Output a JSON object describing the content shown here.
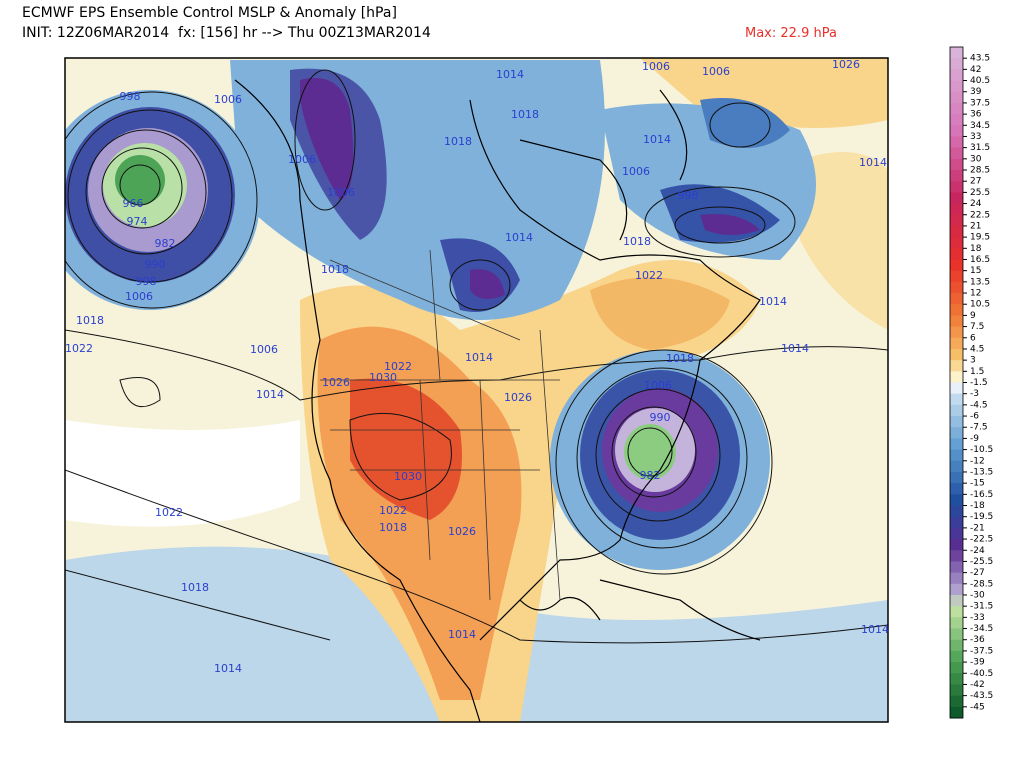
{
  "header": {
    "title": "ECMWF EPS Ensemble Control MSLP & Anomaly [hPa]",
    "init": "INIT: 12Z06MAR2014  fx: [156] hr --> Thu 00Z13MAR2014",
    "max": "Max: 22.9 hPa"
  },
  "colorbar": {
    "labels": [
      "43.5",
      "42",
      "40.5",
      "39",
      "37.5",
      "36",
      "34.5",
      "33",
      "31.5",
      "30",
      "28.5",
      "27",
      "25.5",
      "24",
      "22.5",
      "21",
      "19.5",
      "18",
      "16.5",
      "15",
      "13.5",
      "12",
      "10.5",
      "9",
      "7.5",
      "6",
      "4.5",
      "3",
      "1.5",
      "-1.5",
      "-3",
      "-4.5",
      "-6",
      "-7.5",
      "-9",
      "-10.5",
      "-12",
      "-13.5",
      "-15",
      "-16.5",
      "-18",
      "-19.5",
      "-21",
      "-22.5",
      "-24",
      "-25.5",
      "-27",
      "-28.5",
      "-30",
      "-31.5",
      "-33",
      "-34.5",
      "-36",
      "-37.5",
      "-39",
      "-40.5",
      "-42",
      "-43.5",
      "-45"
    ]
  },
  "isobar_labels": [
    "998",
    "1006",
    "1014",
    "1006",
    "1006",
    "1026",
    "1018",
    "1018",
    "1014",
    "1006",
    "1006",
    "998",
    "1014",
    "1006",
    "966",
    "974",
    "982",
    "990",
    "998",
    "1006",
    "1014",
    "1018",
    "1018",
    "1022",
    "1014",
    "1018",
    "1022",
    "1006",
    "1014",
    "1022",
    "1014",
    "1018",
    "1026",
    "1030",
    "1006",
    "1014",
    "1026",
    "1030",
    "990",
    "982",
    "1022",
    "1022",
    "1018",
    "1026",
    "1018",
    "1014",
    "1014",
    "1014"
  ]
}
